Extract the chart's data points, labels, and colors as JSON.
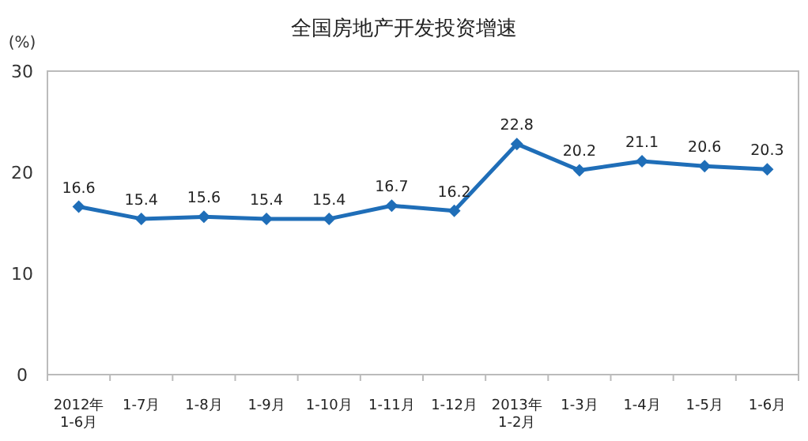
{
  "chart_data": {
    "type": "line",
    "title": "全国房地产开发投资增速",
    "ylabel": "(%)",
    "categories": [
      "2012年\n1-6月",
      "1-7月",
      "1-8月",
      "1-9月",
      "1-10月",
      "1-11月",
      "1-12月",
      "2013年\n1-2月",
      "1-3月",
      "1-4月",
      "1-5月",
      "1-6月"
    ],
    "values": [
      16.6,
      15.4,
      15.6,
      15.4,
      15.4,
      16.7,
      16.2,
      22.8,
      20.2,
      21.1,
      20.6,
      20.3
    ],
    "color": "#1f6eb8",
    "marker": "diamond",
    "data_labels": true,
    "ylim": [
      0,
      30
    ],
    "yticks": [
      0,
      10,
      20,
      30
    ]
  }
}
